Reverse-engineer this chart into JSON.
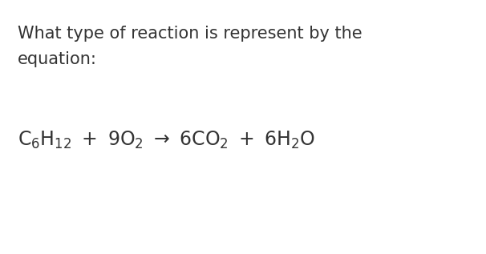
{
  "background_color": "#ffffff",
  "question_line1": "What type of reaction is represent by the",
  "question_line2": "equation:",
  "question_color": "#333333",
  "equation_color": "#333333",
  "question_fontsize": 15,
  "equation_fontsize": 17,
  "figsize": [
    6.06,
    3.17
  ],
  "dpi": 100
}
